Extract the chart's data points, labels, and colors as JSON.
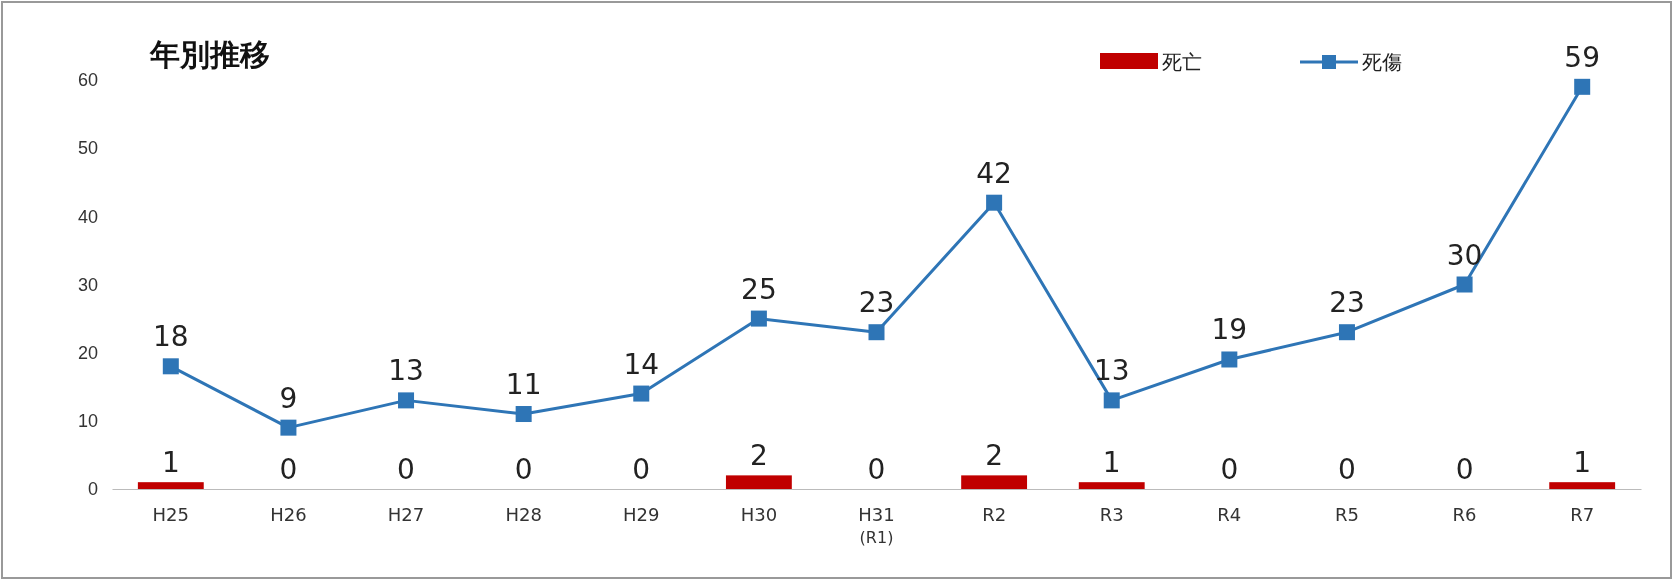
{
  "chart_data": {
    "type": "bar",
    "title": "年別推移",
    "categories": [
      "H25",
      "H26",
      "H27",
      "H28",
      "H29",
      "H30",
      "H31\n(R1)",
      "R2",
      "R3",
      "R4",
      "R5",
      "R6",
      "R7"
    ],
    "series": [
      {
        "name": "死亡",
        "color": "#c00000",
        "values": [
          1,
          0,
          0,
          0,
          0,
          2,
          0,
          2,
          1,
          0,
          0,
          0,
          1
        ]
      },
      {
        "name": "死傷",
        "type": "line",
        "color": "#2e75b6",
        "values": [
          18,
          9,
          13,
          11,
          14,
          25,
          23,
          42,
          13,
          19,
          23,
          30,
          59
        ]
      }
    ],
    "ylim": [
      0,
      60
    ],
    "yticks": [
      0,
      10,
      20,
      30,
      40,
      50,
      60
    ],
    "grid": false,
    "legend": "top right",
    "marker": "square",
    "line_style": "solid",
    "data_labels": true
  }
}
